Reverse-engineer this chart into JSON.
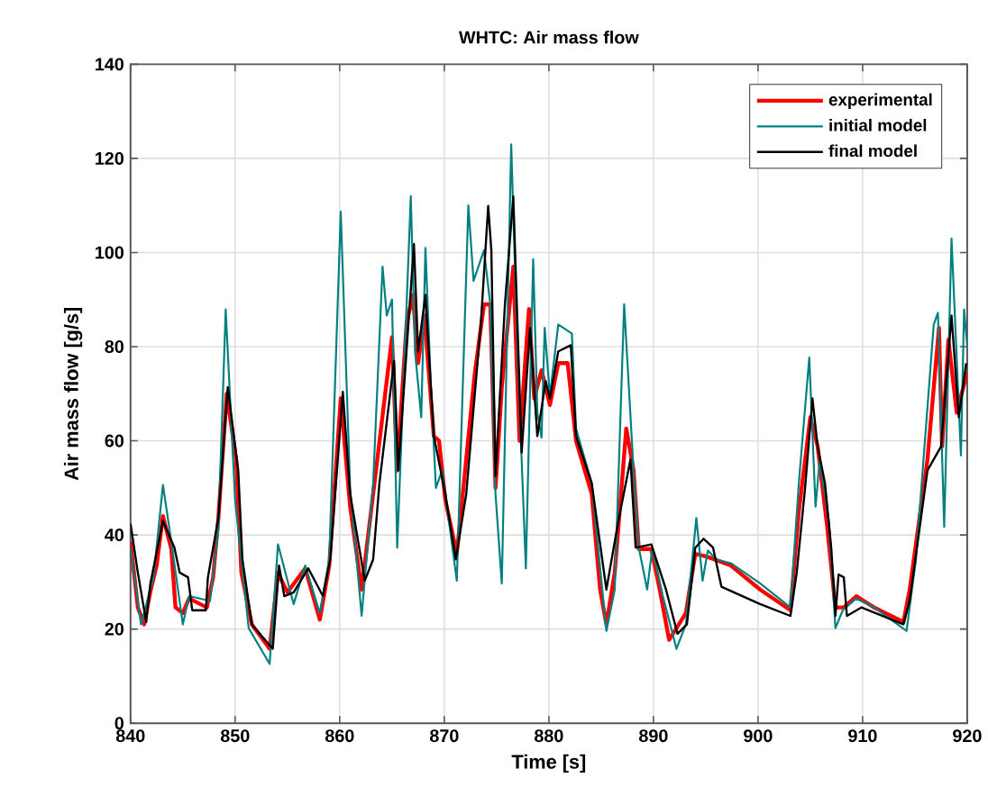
{
  "chart_data": {
    "type": "line",
    "title": "WHTC: Air mass flow",
    "xlabel": "Time [s]",
    "ylabel": "Air mass flow [g/s]",
    "xlim": [
      840,
      920
    ],
    "ylim": [
      0,
      140
    ],
    "xticks": [
      840,
      850,
      860,
      870,
      880,
      890,
      900,
      910,
      920
    ],
    "yticks": [
      0,
      20,
      40,
      60,
      80,
      100,
      120,
      140
    ],
    "grid": true,
    "legend": "top right",
    "series": [
      {
        "name": "experimental",
        "color": "#ff0000",
        "x": [
          840,
          840.7,
          841.3,
          841.9,
          842.5,
          843.1,
          843.9,
          844.3,
          845.0,
          845.6,
          847.3,
          847.9,
          848.4,
          849.2,
          850.1,
          850.6,
          851.6,
          853.3,
          854.1,
          855.0,
          856.7,
          858.1,
          859.0,
          860.1,
          861.0,
          862.1,
          863.2,
          865.0,
          865.5,
          866.4,
          867.0,
          867.5,
          868.1,
          869.0,
          869.5,
          870.1,
          871.2,
          872.9,
          873.8,
          874.4,
          874.9,
          875.5,
          876.6,
          877.2,
          878.1,
          878.6,
          879.3,
          880.1,
          880.9,
          881.8,
          882.6,
          884.1,
          884.9,
          885.5,
          886.3,
          887.4,
          888.1,
          888.6,
          889.8,
          890.6,
          891.5,
          893.1,
          894.0,
          895.1,
          897.4,
          900.2,
          903.1,
          903.9,
          905.0,
          905.7,
          906.6,
          907.4,
          908.2,
          909.4,
          911.1,
          913.9,
          914.5,
          916.2,
          917.3,
          917.6,
          918.2,
          919.0,
          920
        ],
        "values": [
          38.6,
          24.6,
          21,
          28,
          33.5,
          44,
          37,
          24.6,
          23.4,
          26.5,
          24.6,
          31,
          43.6,
          70,
          56,
          32,
          21,
          15.8,
          32,
          27.8,
          32.9,
          22,
          33.5,
          69,
          46,
          28.4,
          48.7,
          82,
          53.7,
          85,
          91,
          76.5,
          86.6,
          61,
          60,
          47.4,
          36,
          74,
          89,
          89,
          50,
          71.4,
          97,
          60,
          88,
          69,
          75,
          67.6,
          76.5,
          76.5,
          60,
          48.7,
          28.4,
          21,
          32,
          62.6,
          53.7,
          37,
          37,
          28.4,
          17.7,
          23.4,
          36,
          35.4,
          33.5,
          28.4,
          24,
          45,
          65,
          58.8,
          42,
          24.6,
          24.6,
          27,
          24.6,
          21.5,
          28.4,
          56,
          84,
          58.8,
          81.5,
          66,
          74.6
        ]
      },
      {
        "name": "initial model",
        "color": "#008080",
        "x": [
          840,
          841.0,
          842.2,
          843.1,
          843.9,
          845.0,
          845.6,
          847.6,
          848.4,
          849.1,
          850.0,
          851.3,
          853.3,
          854.1,
          855.6,
          856.7,
          858.1,
          859.0,
          860.1,
          861.0,
          862.1,
          863.2,
          864.1,
          864.5,
          865.0,
          865.5,
          866.8,
          867.2,
          867.8,
          868.2,
          868.7,
          869.2,
          869.8,
          871.2,
          872.3,
          872.8,
          873.8,
          874.4,
          874.9,
          875.5,
          876.4,
          877.0,
          877.8,
          878.5,
          878.9,
          879.3,
          879.6,
          880.1,
          880.9,
          882.2,
          882.6,
          884.1,
          885.5,
          886.3,
          887.2,
          888.1,
          888.6,
          889.4,
          889.9,
          890.9,
          892.2,
          893.1,
          894.1,
          894.7,
          895.2,
          896.0,
          897.4,
          900.2,
          903.1,
          903.9,
          904.9,
          905.5,
          905.9,
          906.8,
          907.4,
          908.1,
          909.4,
          911.1,
          914.2,
          915.1,
          916.8,
          917.2,
          917.8,
          918.5,
          919.4,
          919.7,
          920
        ],
        "values": [
          37.3,
          21,
          31,
          50.6,
          38.6,
          21,
          27,
          26,
          41,
          87.9,
          47.4,
          20.2,
          12.6,
          38,
          25.3,
          33.5,
          23.4,
          34.8,
          108.7,
          50,
          22.8,
          51,
          97,
          86.6,
          90,
          37.3,
          112,
          79,
          65,
          101,
          72.7,
          50,
          53.7,
          30.3,
          110,
          94,
          100.5,
          89,
          48.7,
          29.7,
          123,
          79,
          32.9,
          98.6,
          66,
          60.7,
          84,
          69.5,
          84.7,
          82.8,
          62.6,
          51,
          19.6,
          28.4,
          89,
          53.7,
          37.3,
          28.4,
          37.3,
          27,
          15.8,
          21,
          43.6,
          30.3,
          36.7,
          34.8,
          34,
          29.7,
          24.6,
          51,
          77.7,
          46,
          56,
          42.4,
          20.2,
          24,
          26.5,
          24.6,
          19.6,
          34.8,
          84.7,
          87.2,
          41.7,
          103,
          56.9,
          87.9,
          80.3
        ]
      },
      {
        "name": "final model",
        "color": "#000000",
        "x": [
          840,
          840.7,
          841.5,
          841.9,
          843.1,
          844.2,
          844.7,
          845.5,
          845.9,
          847.2,
          847.4,
          848.4,
          849.3,
          850.3,
          850.7,
          851.6,
          853.6,
          854.2,
          854.7,
          855.6,
          857.0,
          858.4,
          859.1,
          860.3,
          861.0,
          862.4,
          863.2,
          863.8,
          865.2,
          865.6,
          867.1,
          867.5,
          868.2,
          869.0,
          870.1,
          871.1,
          872.1,
          873.5,
          874.2,
          874.5,
          874.9,
          875.8,
          876.6,
          877.4,
          878.2,
          878.9,
          879.7,
          880.1,
          880.9,
          882.1,
          882.6,
          884.1,
          885.5,
          886.6,
          887.8,
          888.3,
          889.8,
          891.2,
          892.3,
          893.2,
          894.0,
          894.8,
          895.7,
          896.5,
          900.2,
          903.1,
          903.7,
          904.5,
          905.2,
          905.7,
          906.4,
          907.0,
          907.4,
          907.7,
          908.2,
          908.5,
          909.9,
          913.9,
          914.5,
          916.2,
          917.5,
          918.5,
          919.2,
          919.9
        ],
        "values": [
          42.4,
          32,
          21.5,
          29.7,
          43,
          37.3,
          32,
          31,
          24,
          24,
          31,
          43.6,
          71.4,
          53.7,
          34.8,
          21,
          15.8,
          33.5,
          27,
          27.8,
          32.9,
          27,
          34.8,
          70.4,
          48.7,
          30.3,
          34.8,
          51,
          77,
          53.7,
          101.8,
          79,
          91,
          61,
          48.7,
          34.8,
          48.7,
          85,
          109.9,
          100.5,
          52.5,
          89,
          111.9,
          57.5,
          84,
          61,
          72.7,
          69,
          79,
          80.3,
          61,
          51,
          28.4,
          42.4,
          56,
          37.3,
          38,
          28.4,
          19,
          21,
          37.3,
          39.2,
          37.3,
          29,
          25.3,
          22.8,
          32,
          50,
          69,
          58.8,
          51,
          37.3,
          22.8,
          31.6,
          31,
          22.8,
          24.6,
          21,
          26,
          53.7,
          58.8,
          86.6,
          65,
          76.5
        ]
      }
    ]
  }
}
